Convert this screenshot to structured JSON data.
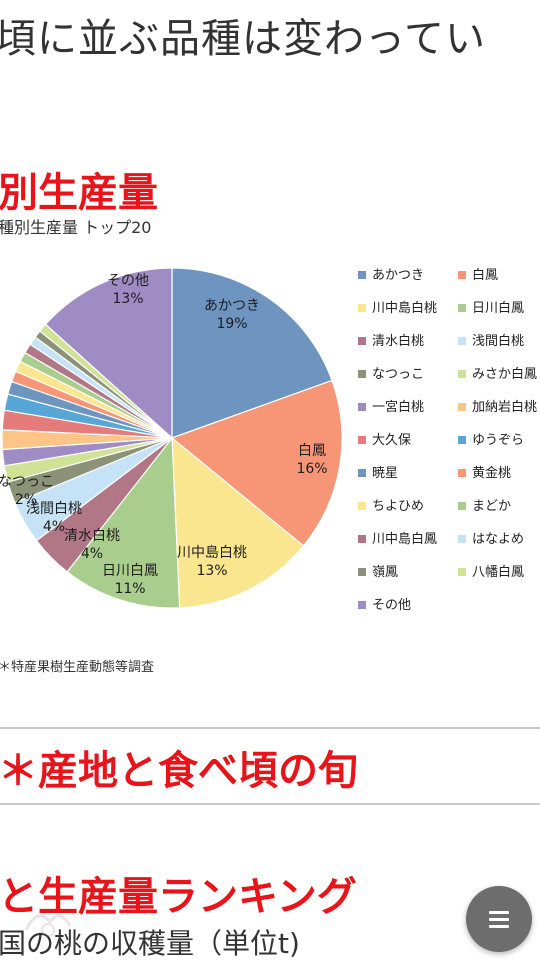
{
  "header": {
    "top_text": "頃に並ぶ品種は変わってい",
    "section1_title": "別生産量",
    "chart_caption": "種別生産量 トップ20",
    "source_text": "＊特産果樹生産動態等調査",
    "section2_title": "＊産地と食べ頃の旬",
    "section3_title": "と生産量ランキング",
    "section3_sub": "国の桃の収穫量（単位t)"
  },
  "chart_data": {
    "type": "pie",
    "title": "種別生産量 トップ20",
    "slices": [
      {
        "name": "あかつき",
        "value": 19,
        "color": "#6e94c0",
        "label": "19%"
      },
      {
        "name": "白鳳",
        "value": 16,
        "color": "#f79677",
        "label": "16%"
      },
      {
        "name": "川中島白桃",
        "value": 13,
        "color": "#fae68e",
        "label": "13%"
      },
      {
        "name": "日川白鳳",
        "value": 11,
        "color": "#a8cd8c",
        "label": "11%"
      },
      {
        "name": "清水白桃",
        "value": 4,
        "color": "#b27786",
        "label": "4%"
      },
      {
        "name": "浅間白桃",
        "value": 4,
        "color": "#c6e2f6",
        "label": "4%"
      },
      {
        "name": "なつっこ",
        "value": 2,
        "color": "#8c9278",
        "label": "2%"
      },
      {
        "name": "みさか白鳳",
        "value": 1.5,
        "color": "#cfe295",
        "label": ""
      },
      {
        "name": "一宮白桃",
        "value": 1.5,
        "color": "#a08cc4",
        "label": ""
      },
      {
        "name": "加納岩白桃",
        "value": 1.8,
        "color": "#fcc487",
        "label": ""
      },
      {
        "name": "大久保",
        "value": 1.8,
        "color": "#e57b7b",
        "label": ""
      },
      {
        "name": "ゆうぞら",
        "value": 1.5,
        "color": "#58a6d8",
        "label": ""
      },
      {
        "name": "暁星",
        "value": 1.2,
        "color": "#6e94c0",
        "label": ""
      },
      {
        "name": "黄金桃",
        "value": 1.0,
        "color": "#f79677",
        "label": ""
      },
      {
        "name": "ちよひめ",
        "value": 1.0,
        "color": "#fae68e",
        "label": ""
      },
      {
        "name": "まどか",
        "value": 0.9,
        "color": "#a8cd8c",
        "label": ""
      },
      {
        "name": "川中島白鳳",
        "value": 0.9,
        "color": "#b27786",
        "label": ""
      },
      {
        "name": "はなよめ",
        "value": 0.8,
        "color": "#c6e2f6",
        "label": ""
      },
      {
        "name": "嶺鳳",
        "value": 0.7,
        "color": "#8c9278",
        "label": ""
      },
      {
        "name": "八幡白鳳",
        "value": 0.8,
        "color": "#cfe295",
        "label": ""
      },
      {
        "name": "その他",
        "value": 13,
        "color": "#a08cc4",
        "label": "13%"
      }
    ],
    "legend_placement": "right"
  },
  "fab": {
    "icon": "menu-icon"
  }
}
